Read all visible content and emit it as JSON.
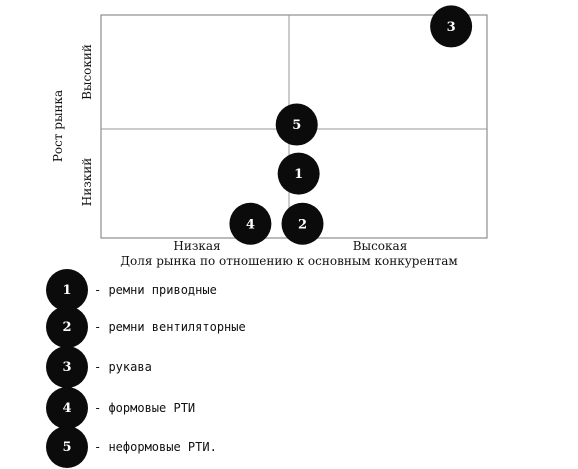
{
  "diagram": {
    "y_axis_title": "Рост рынка",
    "y_high_label": "Высокий",
    "y_low_label": "Низкий",
    "x_low_label": "Низкая",
    "x_high_label": "Высокая",
    "x_axis_title": "Доля рынка по отношению к основным конкурентам",
    "bubbles": [
      {
        "label": "1",
        "share": 0.05,
        "growth": -0.4
      },
      {
        "label": "2",
        "share": 0.07,
        "growth": -0.85
      },
      {
        "label": "3",
        "share": 0.84,
        "growth": 0.92
      },
      {
        "label": "4",
        "share": -0.2,
        "growth": -0.85
      },
      {
        "label": "5",
        "share": 0.04,
        "growth": 0.04
      }
    ]
  },
  "legend": [
    {
      "number": "1",
      "text": "- ремни приводные"
    },
    {
      "number": "2",
      "text": "- ремни вентиляторные"
    },
    {
      "number": "3",
      "text": "- рукава"
    },
    {
      "number": "4",
      "text": "- формовые РТИ"
    },
    {
      "number": "5",
      "text": "- неформовые РТИ."
    }
  ]
}
